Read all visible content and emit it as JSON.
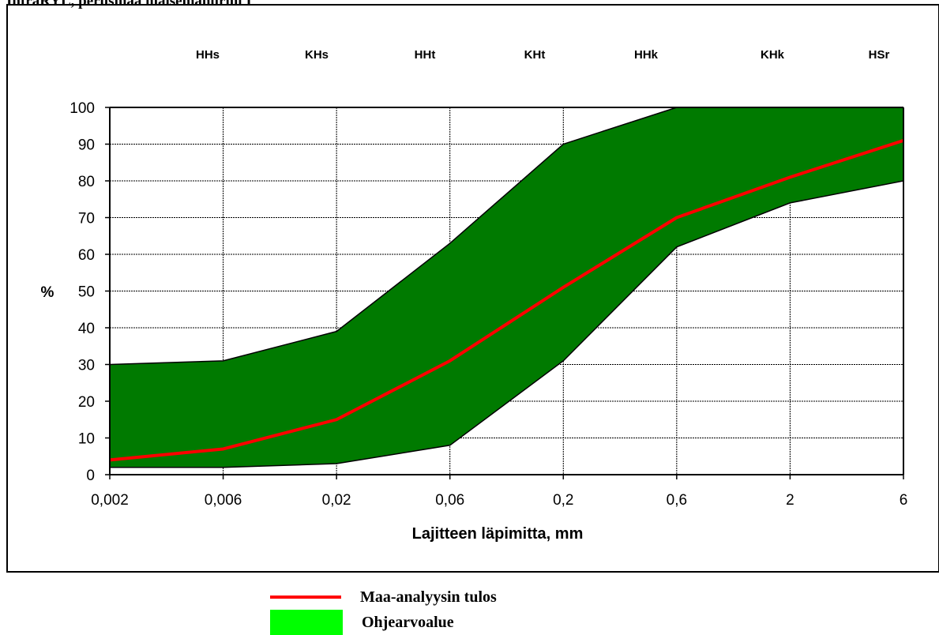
{
  "page": {
    "title": "InfraRYL, perusmaa maisemanurmi I"
  },
  "chart_data": {
    "type": "area",
    "x": [
      "0,002",
      "0,006",
      "0,02",
      "0,06",
      "0,2",
      "0,6",
      "2",
      "6"
    ],
    "x_values_mm": [
      0.002,
      0.006,
      0.02,
      0.06,
      0.2,
      0.6,
      2,
      6
    ],
    "xscale": "log",
    "xlabel": "Lajitteen läpimitta, mm",
    "ylabel": "%",
    "ylim": [
      0,
      100
    ],
    "yticks": [
      0,
      10,
      20,
      30,
      40,
      50,
      60,
      70,
      80,
      90,
      100
    ],
    "grid": true,
    "categories_top": [
      "HHs",
      "KHs",
      "HHt",
      "KHt",
      "HHk",
      "KHk",
      "HSr"
    ],
    "band": {
      "name": "Ohjearvoalue",
      "upper": [
        30,
        31,
        39,
        63,
        90,
        100,
        100,
        100
      ],
      "lower": [
        2,
        2,
        3,
        8,
        31,
        62,
        74,
        80
      ],
      "color": "#007a00"
    },
    "series": [
      {
        "name": "Maa-analyysin tulos",
        "values": [
          4,
          7,
          15,
          31,
          51,
          70,
          81,
          91
        ],
        "color": "#ff0000"
      }
    ],
    "legend": {
      "position": "bottom-center",
      "entries": [
        {
          "label": "Maa-analyysin tulos",
          "swatch": "line",
          "color": "#ff0000"
        },
        {
          "label": "Ohjearvoalue",
          "swatch": "area",
          "color": "#00ff00"
        }
      ]
    }
  }
}
